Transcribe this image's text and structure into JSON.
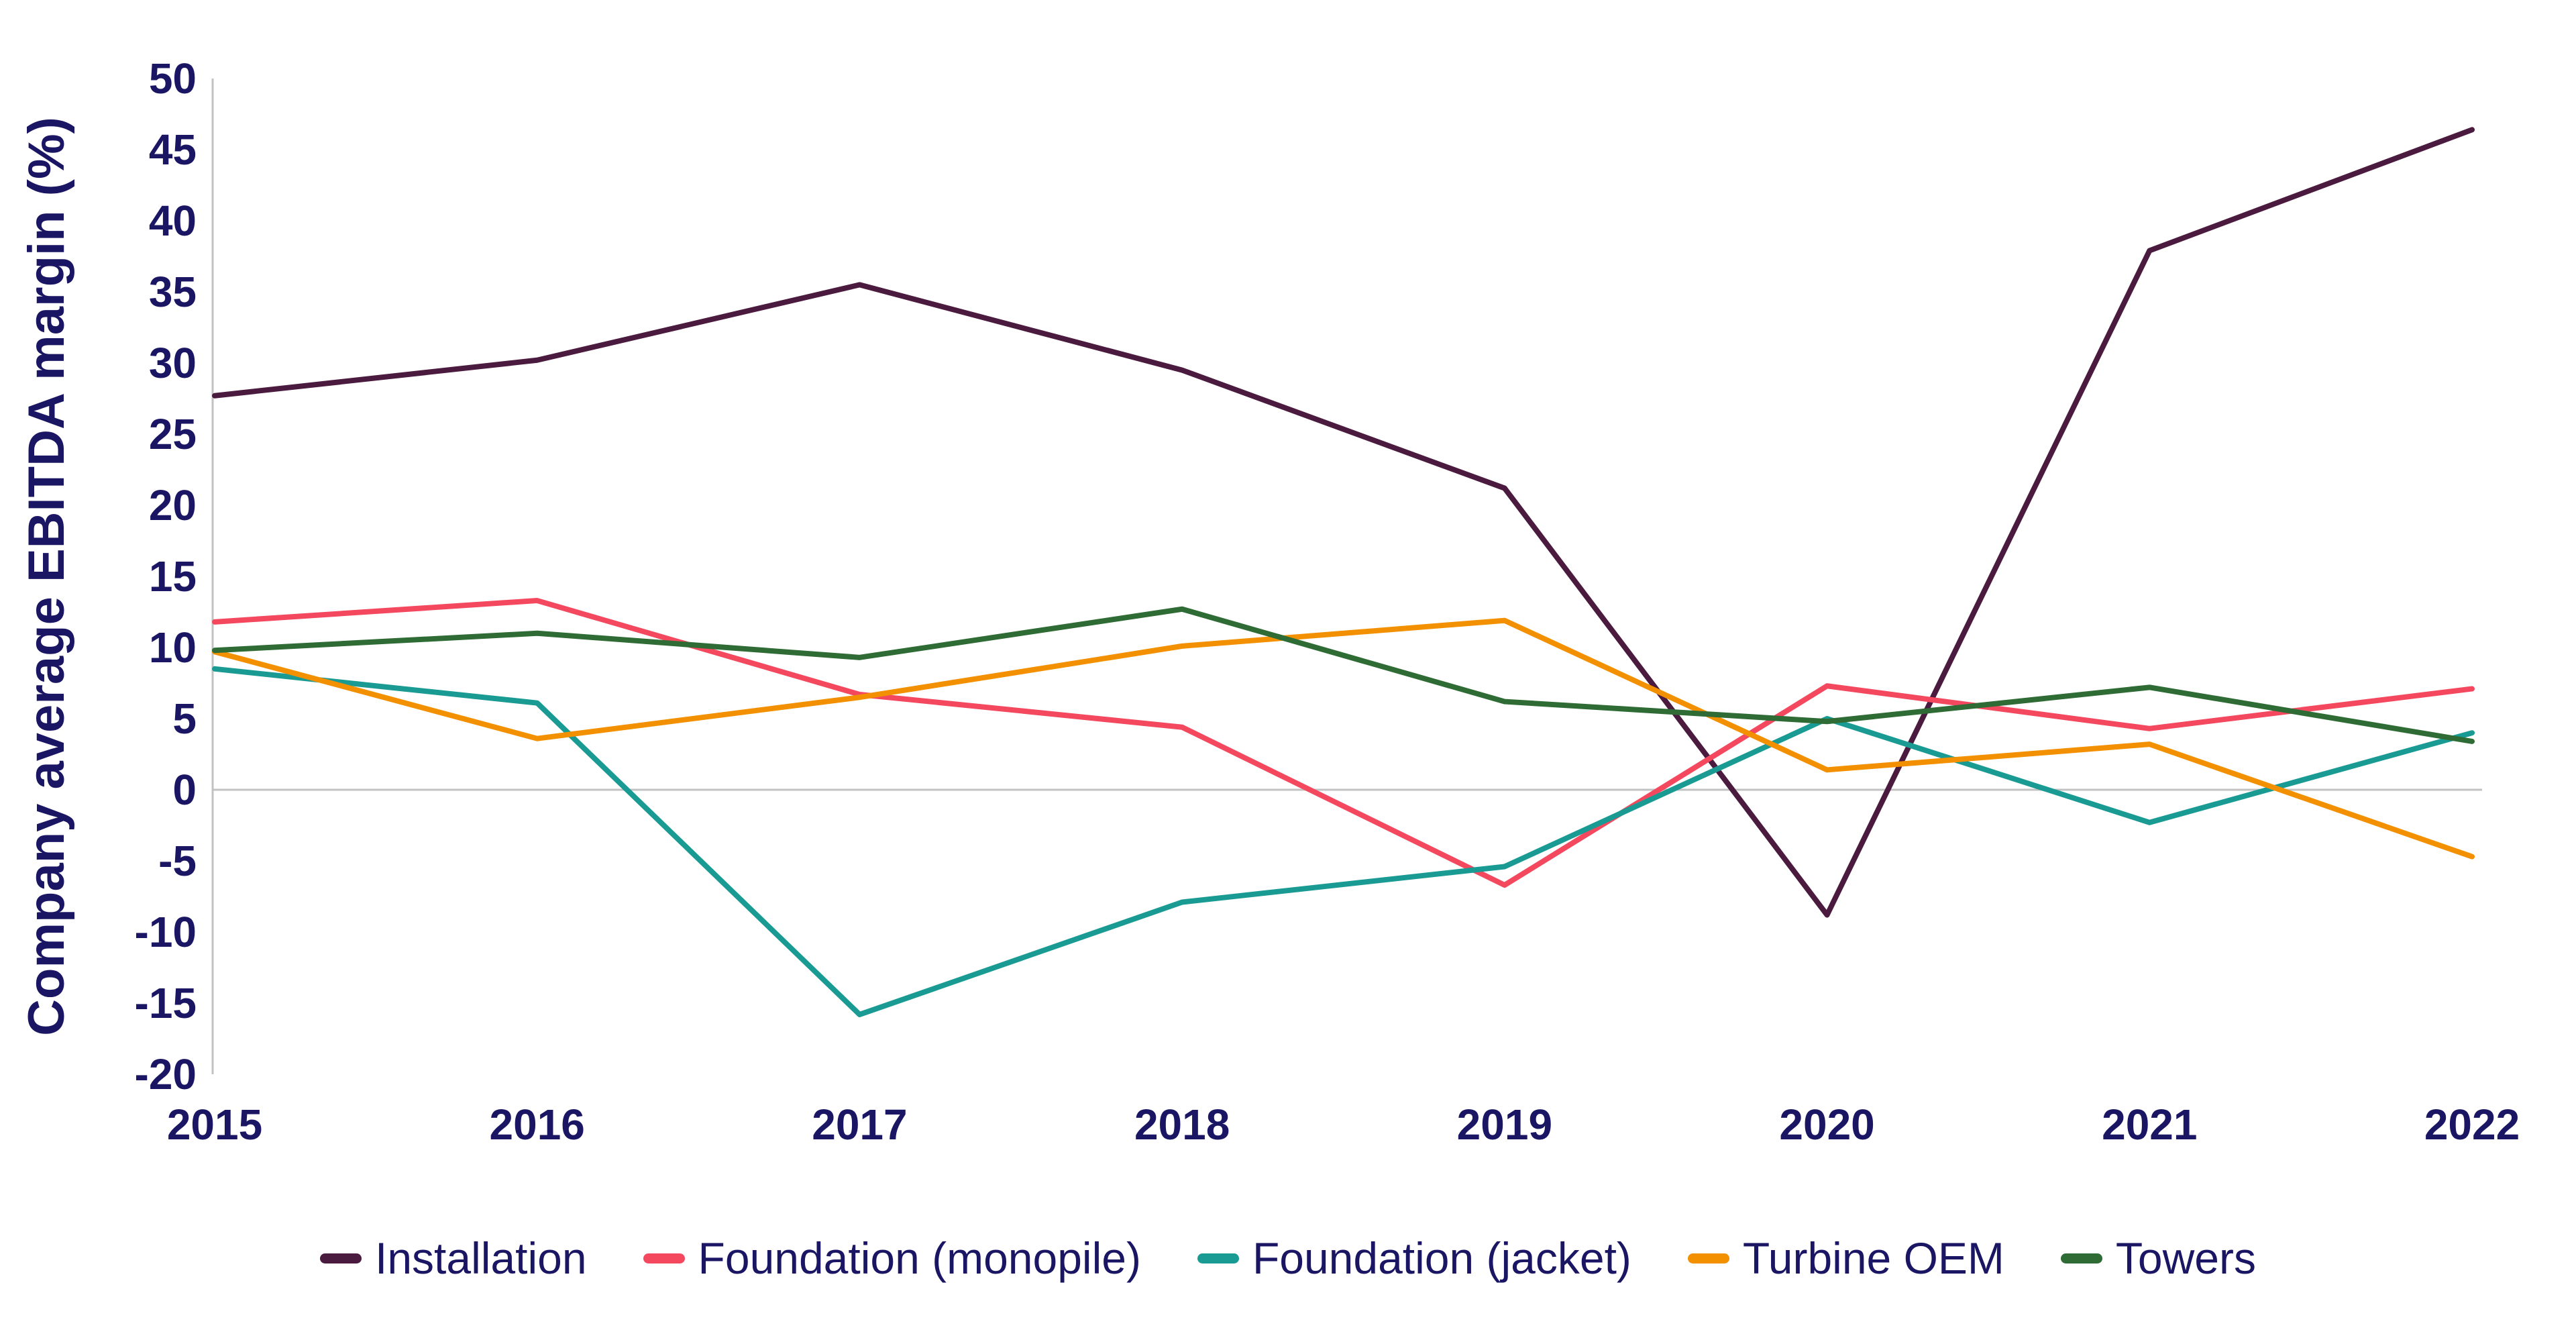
{
  "chart_data": {
    "type": "line",
    "title": "",
    "xlabel": "",
    "ylabel": "Company average EBITDA margin (%)",
    "categories": [
      "2015",
      "2016",
      "2017",
      "2018",
      "2019",
      "2020",
      "2021",
      "2022"
    ],
    "yticks": [
      50,
      45,
      40,
      35,
      30,
      25,
      20,
      15,
      10,
      5,
      0,
      -5,
      -10,
      -15,
      -20
    ],
    "ylim": [
      -20,
      50
    ],
    "grid": "zero-baseline-only",
    "legend_position": "bottom-center",
    "series": [
      {
        "name": "Installation",
        "color": "#4B1A3F",
        "values": [
          27.7,
          30.2,
          35.5,
          29.5,
          21.2,
          -8.8,
          37.9,
          46.4
        ]
      },
      {
        "name": "Foundation (monopile)",
        "color": "#F4485F",
        "values": [
          11.8,
          13.3,
          6.7,
          4.4,
          -6.7,
          7.3,
          4.3,
          7.1
        ]
      },
      {
        "name": "Foundation (jacket)",
        "color": "#199B94",
        "values": [
          8.5,
          6.1,
          -15.8,
          -7.9,
          -5.4,
          5.0,
          -2.3,
          4.0
        ]
      },
      {
        "name": "Turbine OEM",
        "color": "#F39000",
        "values": [
          9.7,
          3.6,
          6.5,
          10.1,
          11.9,
          1.4,
          3.2,
          -4.7
        ]
      },
      {
        "name": "Towers",
        "color": "#2F6B34",
        "values": [
          9.8,
          11.0,
          9.3,
          12.7,
          6.2,
          4.8,
          7.2,
          3.4
        ]
      }
    ]
  },
  "colors": {
    "text": "#1B1664",
    "axis_line": "#C2C2C2",
    "zero_line": "#C2C2C2",
    "background": "#FFFFFF"
  }
}
